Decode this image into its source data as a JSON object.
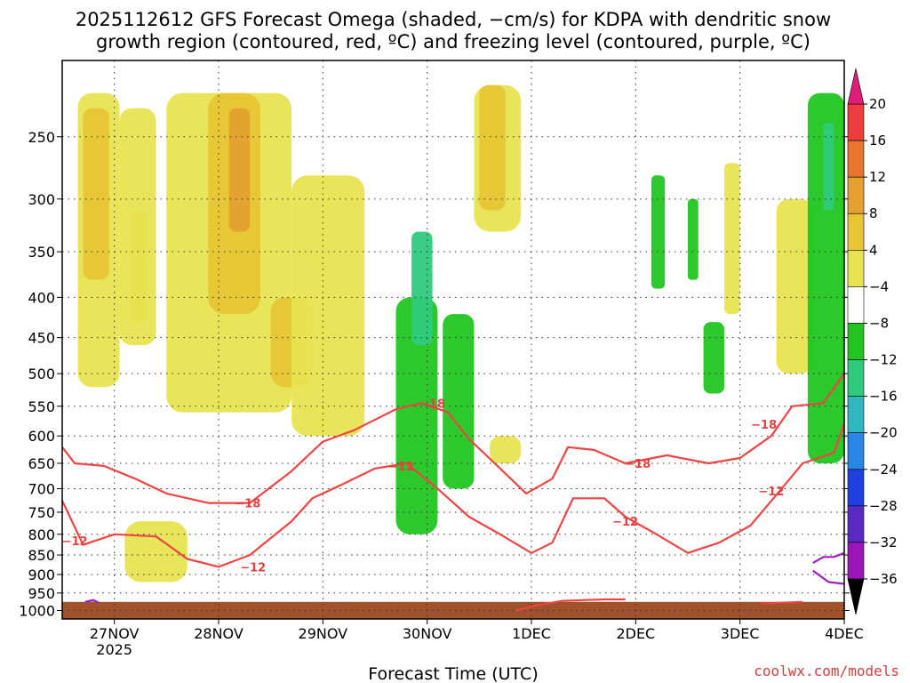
{
  "title_line1": "2025112612 GFS Forecast Omega (shaded, −cm/s) for KDPA with dendritic snow",
  "title_line2": "growth region (contoured, red, ºC) and freezing level (contoured, purple, ºC)",
  "xlabel": "Forecast Time (UTC)",
  "credit": "coolwx.com/models",
  "chart_data": {
    "type": "heatmap",
    "title": "2025112612 GFS Forecast Omega (shaded, −cm/s) for KDPA with dendritic snow growth region (contoured, red, ºC) and freezing level (contoured, purple, ºC)",
    "xlabel": "Forecast Time (UTC)",
    "ylabel": "",
    "x_ticks": [
      {
        "t": 0.5,
        "label": "27NOV",
        "sub": "2025"
      },
      {
        "t": 1.5,
        "label": "28NOV"
      },
      {
        "t": 2.5,
        "label": "29NOV"
      },
      {
        "t": 3.5,
        "label": "30NOV"
      },
      {
        "t": 4.5,
        "label": "1DEC"
      },
      {
        "t": 5.5,
        "label": "2DEC"
      },
      {
        "t": 6.5,
        "label": "3DEC"
      },
      {
        "t": 7.5,
        "label": "4DEC"
      }
    ],
    "xlim": [
      0,
      7.5
    ],
    "y_ticks": [
      250,
      300,
      350,
      400,
      450,
      500,
      550,
      600,
      650,
      700,
      750,
      800,
      850,
      900,
      950,
      1000
    ],
    "ylim_hpa": [
      1025,
      200
    ],
    "y_scale": "log-pressure",
    "grid": true,
    "colorbar": {
      "ticks": [
        20,
        16,
        12,
        8,
        4,
        -4,
        -8,
        -12,
        -16,
        -20,
        -24,
        -28,
        -32,
        -36
      ],
      "colors": [
        "#ef3d3d",
        "#e8742e",
        "#e4a12f",
        "#e7c535",
        "#e8e451",
        "#ffffff",
        "#21c521",
        "#2ecb7c",
        "#2eb9c2",
        "#2a86e6",
        "#1f3fde",
        "#5a28c2",
        "#9a16b8",
        "#a0a0a0"
      ],
      "top_arrow": "#dd1f7a",
      "bottom_arrow": "#000000"
    },
    "contour_labels": {
      "dgz_minus18": "−18",
      "dgz_minus12": "−12"
    },
    "dgz_minus18": [
      [
        0.0,
        620
      ],
      [
        0.12,
        650
      ],
      [
        0.4,
        655
      ],
      [
        0.7,
        680
      ],
      [
        1.0,
        710
      ],
      [
        1.4,
        730
      ],
      [
        1.8,
        730
      ],
      [
        2.2,
        665
      ],
      [
        2.5,
        610
      ],
      [
        2.8,
        590
      ],
      [
        3.2,
        555
      ],
      [
        3.45,
        545
      ],
      [
        3.7,
        560
      ],
      [
        3.9,
        605
      ],
      [
        4.2,
        660
      ],
      [
        4.45,
        710
      ],
      [
        4.7,
        680
      ],
      [
        4.85,
        620
      ],
      [
        5.1,
        625
      ],
      [
        5.4,
        650
      ],
      [
        5.8,
        635
      ],
      [
        6.2,
        650
      ],
      [
        6.5,
        640
      ],
      [
        6.8,
        600
      ],
      [
        7.0,
        550
      ],
      [
        7.3,
        545
      ],
      [
        7.5,
        500
      ]
    ],
    "dgz_minus12": [
      [
        0.0,
        725
      ],
      [
        0.2,
        825
      ],
      [
        0.5,
        800
      ],
      [
        0.9,
        805
      ],
      [
        1.2,
        860
      ],
      [
        1.5,
        880
      ],
      [
        1.8,
        850
      ],
      [
        2.2,
        770
      ],
      [
        2.4,
        720
      ],
      [
        2.7,
        690
      ],
      [
        3.0,
        660
      ],
      [
        3.3,
        650
      ],
      [
        3.6,
        700
      ],
      [
        3.9,
        760
      ],
      [
        4.2,
        800
      ],
      [
        4.5,
        845
      ],
      [
        4.7,
        820
      ],
      [
        4.9,
        720
      ],
      [
        5.2,
        720
      ],
      [
        5.4,
        760
      ],
      [
        5.7,
        800
      ],
      [
        6.0,
        845
      ],
      [
        6.3,
        820
      ],
      [
        6.6,
        780
      ],
      [
        6.9,
        700
      ],
      [
        7.1,
        650
      ],
      [
        7.4,
        630
      ],
      [
        7.5,
        580
      ]
    ],
    "dgz_tail": [
      [
        4.35,
        1000
      ],
      [
        4.55,
        985
      ],
      [
        4.8,
        972
      ],
      [
        5.2,
        968
      ],
      [
        5.4,
        968
      ]
    ],
    "dgz_tail2": [
      [
        6.7,
        980
      ],
      [
        7.1,
        975
      ]
    ],
    "freezing_level": [
      [
        0.22,
        975
      ],
      [
        0.3,
        970
      ],
      [
        0.35,
        978
      ]
    ],
    "freezing_level_right": [
      [
        7.2,
        870
      ],
      [
        7.3,
        855
      ],
      [
        7.4,
        855
      ],
      [
        7.5,
        845
      ]
    ],
    "freezing_level_right2": [
      [
        7.2,
        890
      ],
      [
        7.35,
        920
      ],
      [
        7.5,
        925
      ]
    ],
    "omega_regions": [
      {
        "v": 4,
        "x": [
          0.15,
          0.55
        ],
        "p": [
          220,
          520
        ]
      },
      {
        "v": 8,
        "x": [
          0.2,
          0.45
        ],
        "p": [
          230,
          380
        ]
      },
      {
        "v": 8,
        "x": [
          0.65,
          0.8
        ],
        "p": [
          310,
          430
        ]
      },
      {
        "v": 4,
        "x": [
          0.55,
          0.9
        ],
        "p": [
          230,
          460
        ]
      },
      {
        "v": 4,
        "x": [
          0.6,
          1.2
        ],
        "p": [
          770,
          920
        ]
      },
      {
        "v": 4,
        "x": [
          1.0,
          2.2
        ],
        "p": [
          220,
          560
        ]
      },
      {
        "v": 8,
        "x": [
          1.4,
          1.9
        ],
        "p": [
          220,
          420
        ]
      },
      {
        "v": 12,
        "x": [
          1.6,
          1.8
        ],
        "p": [
          230,
          330
        ]
      },
      {
        "v": 8,
        "x": [
          2.0,
          2.4
        ],
        "p": [
          400,
          520
        ]
      },
      {
        "v": 4,
        "x": [
          2.2,
          2.9
        ],
        "p": [
          280,
          600
        ]
      },
      {
        "v": -4,
        "x": [
          3.0,
          3.7
        ],
        "p": [
          230,
          860
        ]
      },
      {
        "v": -8,
        "x": [
          3.2,
          3.6
        ],
        "p": [
          400,
          800
        ]
      },
      {
        "v": -12,
        "x": [
          3.35,
          3.55
        ],
        "p": [
          330,
          460
        ]
      },
      {
        "v": -8,
        "x": [
          3.65,
          3.95
        ],
        "p": [
          420,
          700
        ]
      },
      {
        "v": 4,
        "x": [
          3.95,
          4.4
        ],
        "p": [
          215,
          330
        ]
      },
      {
        "v": 8,
        "x": [
          4.0,
          4.25
        ],
        "p": [
          215,
          310
        ]
      },
      {
        "v": 4,
        "x": [
          4.1,
          4.4
        ],
        "p": [
          600,
          650
        ]
      },
      {
        "v": -4,
        "x": [
          5.4,
          5.55
        ],
        "p": [
          220,
          300
        ]
      },
      {
        "v": -8,
        "x": [
          5.65,
          5.78
        ],
        "p": [
          280,
          390
        ]
      },
      {
        "v": -8,
        "x": [
          6.0,
          6.1
        ],
        "p": [
          300,
          380
        ]
      },
      {
        "v": -8,
        "x": [
          6.15,
          6.35
        ],
        "p": [
          430,
          530
        ]
      },
      {
        "v": 4,
        "x": [
          6.35,
          6.5
        ],
        "p": [
          270,
          420
        ]
      },
      {
        "v": 4,
        "x": [
          6.85,
          7.2
        ],
        "p": [
          300,
          500
        ]
      },
      {
        "v": -8,
        "x": [
          7.15,
          7.5
        ],
        "p": [
          220,
          650
        ]
      },
      {
        "v": -12,
        "x": [
          7.3,
          7.4
        ],
        "p": [
          240,
          310
        ]
      }
    ]
  }
}
